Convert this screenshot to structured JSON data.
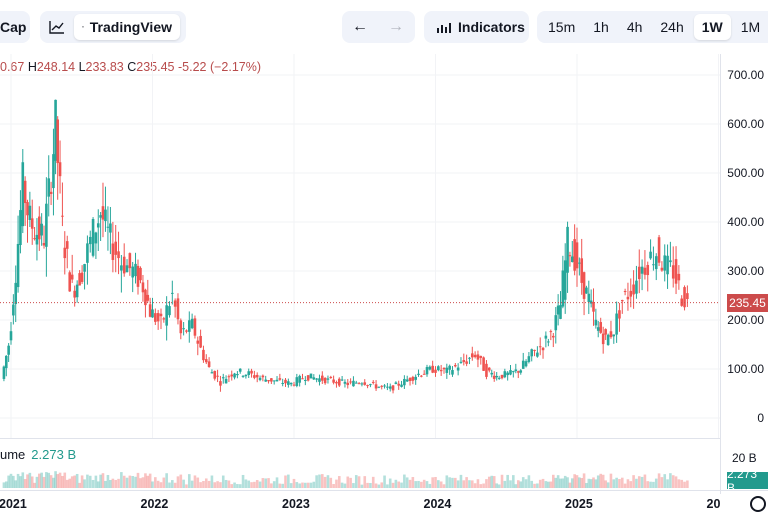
{
  "toolbar": {
    "cap_label": "Cap",
    "tradingview_label": "TradingView",
    "indicators_label": "Indicators",
    "timeframes": [
      "15m",
      "1h",
      "4h",
      "24h",
      "1W",
      "1M"
    ],
    "active_timeframe": "1W"
  },
  "ohlc": {
    "open_value": "0.67",
    "high_key": "H",
    "high_value": "248.14",
    "low_key": "L",
    "low_value": "233.83",
    "close_key": "C",
    "close_value": "235.45",
    "change": "-5.22 (−2.17%)"
  },
  "volume": {
    "label": "ume",
    "value": "2.273 B",
    "axis_label": "20 B",
    "tag": "2.273 B"
  },
  "price_tag": "235.45",
  "colors": {
    "up": "#26a69a",
    "down": "#ef5350",
    "price_line": "#cc4b4b",
    "accent": "#2962ff"
  },
  "chart_data": {
    "type": "candlestick",
    "y_ticks": [
      "700.00",
      "600.00",
      "500.00",
      "400.00",
      "300.00",
      "200.00",
      "100.00",
      "0"
    ],
    "x_ticks": [
      "2021",
      "2022",
      "2023",
      "2024",
      "2025",
      "20"
    ],
    "ylim": [
      0,
      700
    ],
    "current_price": 235.45,
    "series": [
      {
        "t": 2020.95,
        "v": 80
      },
      {
        "t": 2021.0,
        "v": 150
      },
      {
        "t": 2021.05,
        "v": 300
      },
      {
        "t": 2021.1,
        "v": 480
      },
      {
        "t": 2021.15,
        "v": 400
      },
      {
        "t": 2021.2,
        "v": 380
      },
      {
        "t": 2021.25,
        "v": 370
      },
      {
        "t": 2021.3,
        "v": 500
      },
      {
        "t": 2021.33,
        "v": 600
      },
      {
        "t": 2021.38,
        "v": 380
      },
      {
        "t": 2021.45,
        "v": 260
      },
      {
        "t": 2021.52,
        "v": 300
      },
      {
        "t": 2021.6,
        "v": 380
      },
      {
        "t": 2021.65,
        "v": 420
      },
      {
        "t": 2021.72,
        "v": 360
      },
      {
        "t": 2021.8,
        "v": 320
      },
      {
        "t": 2021.88,
        "v": 300
      },
      {
        "t": 2021.95,
        "v": 270
      },
      {
        "t": 2022.0,
        "v": 220
      },
      {
        "t": 2022.08,
        "v": 190
      },
      {
        "t": 2022.16,
        "v": 250
      },
      {
        "t": 2022.22,
        "v": 170
      },
      {
        "t": 2022.3,
        "v": 190
      },
      {
        "t": 2022.36,
        "v": 140
      },
      {
        "t": 2022.42,
        "v": 100
      },
      {
        "t": 2022.5,
        "v": 75
      },
      {
        "t": 2022.6,
        "v": 95
      },
      {
        "t": 2022.7,
        "v": 90
      },
      {
        "t": 2022.8,
        "v": 80
      },
      {
        "t": 2022.9,
        "v": 75
      },
      {
        "t": 2023.0,
        "v": 70
      },
      {
        "t": 2023.1,
        "v": 85
      },
      {
        "t": 2023.2,
        "v": 80
      },
      {
        "t": 2023.3,
        "v": 75
      },
      {
        "t": 2023.4,
        "v": 70
      },
      {
        "t": 2023.5,
        "v": 75
      },
      {
        "t": 2023.6,
        "v": 65
      },
      {
        "t": 2023.7,
        "v": 60
      },
      {
        "t": 2023.8,
        "v": 75
      },
      {
        "t": 2023.9,
        "v": 90
      },
      {
        "t": 2024.0,
        "v": 100
      },
      {
        "t": 2024.1,
        "v": 95
      },
      {
        "t": 2024.2,
        "v": 110
      },
      {
        "t": 2024.3,
        "v": 130
      },
      {
        "t": 2024.38,
        "v": 95
      },
      {
        "t": 2024.45,
        "v": 85
      },
      {
        "t": 2024.55,
        "v": 90
      },
      {
        "t": 2024.62,
        "v": 100
      },
      {
        "t": 2024.7,
        "v": 130
      },
      {
        "t": 2024.78,
        "v": 150
      },
      {
        "t": 2024.85,
        "v": 180
      },
      {
        "t": 2024.9,
        "v": 230
      },
      {
        "t": 2024.95,
        "v": 360
      },
      {
        "t": 2025.0,
        "v": 330
      },
      {
        "t": 2025.05,
        "v": 280
      },
      {
        "t": 2025.1,
        "v": 240
      },
      {
        "t": 2025.15,
        "v": 190
      },
      {
        "t": 2025.22,
        "v": 160
      },
      {
        "t": 2025.28,
        "v": 180
      },
      {
        "t": 2025.34,
        "v": 240
      },
      {
        "t": 2025.4,
        "v": 260
      },
      {
        "t": 2025.46,
        "v": 300
      },
      {
        "t": 2025.52,
        "v": 320
      },
      {
        "t": 2025.58,
        "v": 340
      },
      {
        "t": 2025.64,
        "v": 310
      },
      {
        "t": 2025.7,
        "v": 300
      },
      {
        "t": 2025.76,
        "v": 250
      },
      {
        "t": 2025.8,
        "v": 235.45
      }
    ]
  }
}
